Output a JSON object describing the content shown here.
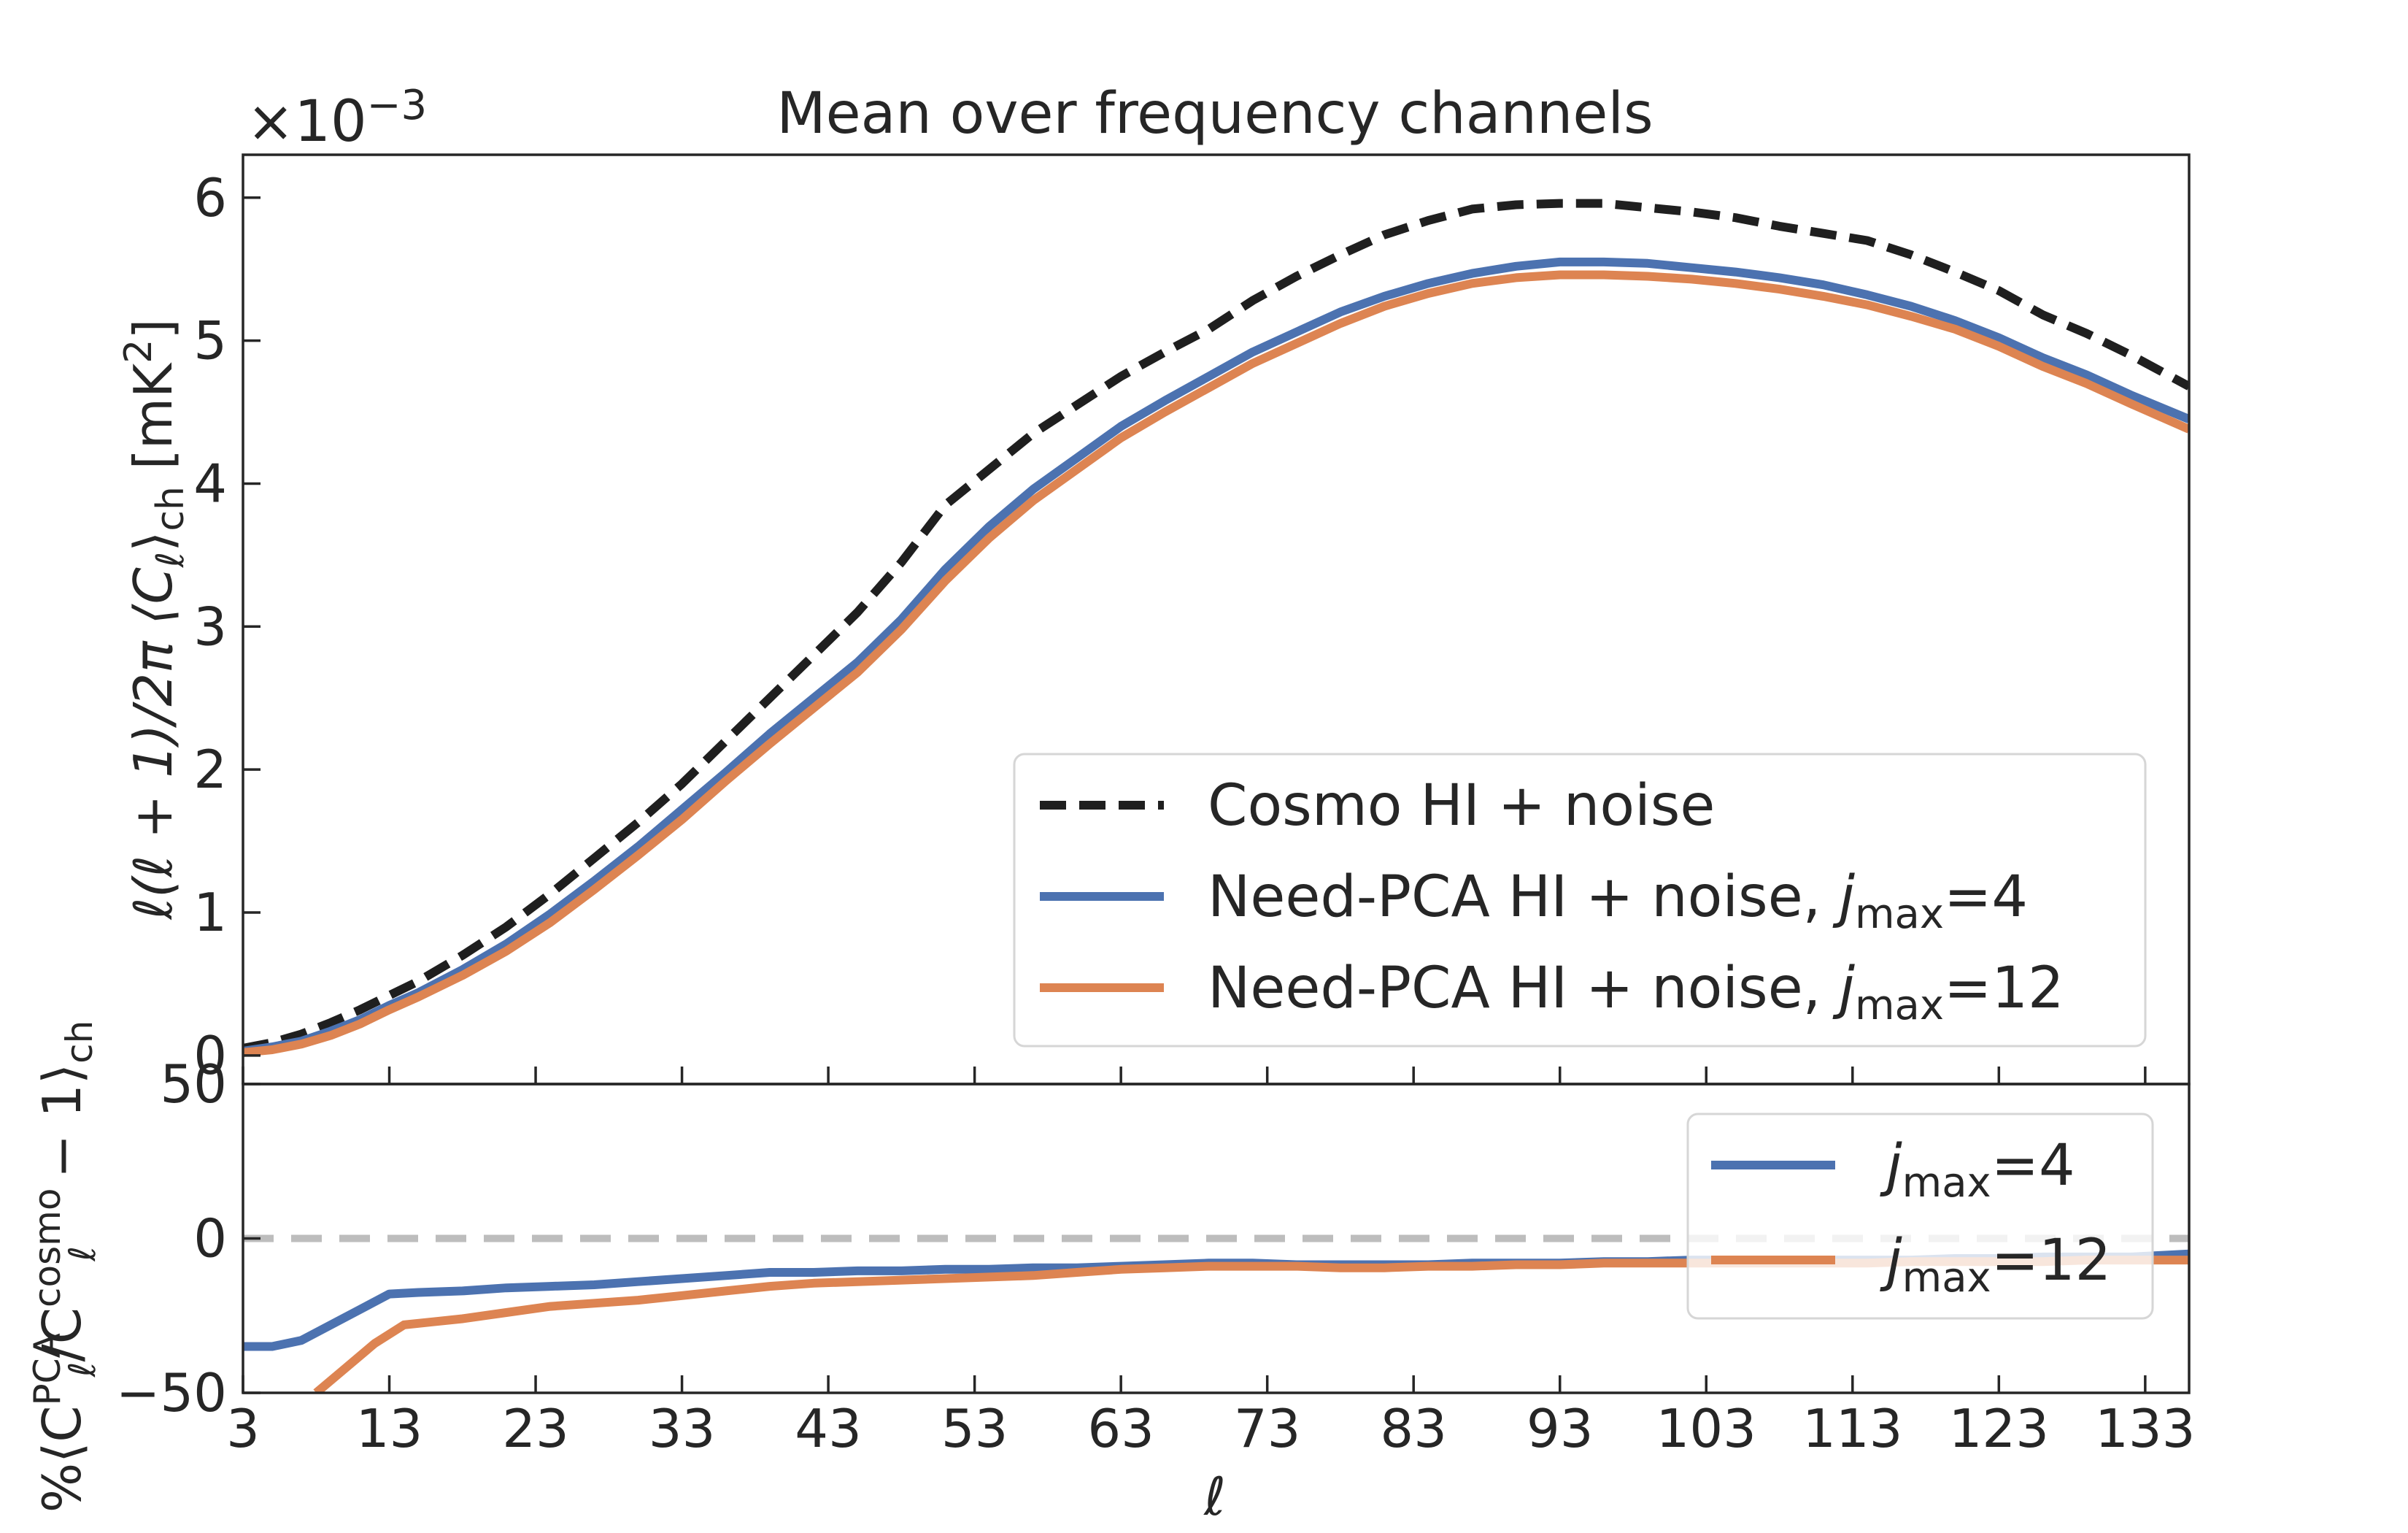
{
  "chart_data": [
    {
      "type": "line",
      "title": "Mean over frequency channels",
      "ylabel": "ℓ(ℓ + 1)/2π ⟨C",
      "ylabel_sub": "ℓ",
      "ylabel_mid": "⟩",
      "ylabel_sub2": "ch",
      "ylabel_unit": " [mK",
      "ylabel_sup": "2",
      "ylabel_end": "]",
      "y_multiplier_base": "×10",
      "y_multiplier_exp": "−3",
      "xlim": [
        3,
        136
      ],
      "ylim": [
        -0.2,
        6.3
      ],
      "y_scale": 0.001,
      "yticks": [
        0,
        1,
        2,
        3,
        4,
        5,
        6
      ],
      "ytick_labels": [
        "0",
        "1",
        "2",
        "3",
        "4",
        "5",
        "6"
      ],
      "legend_position": "lower-right",
      "grid": false,
      "series": [
        {
          "name": "Cosmo HI + noise",
          "color": "#1f1f1f",
          "dash": "dashed",
          "x": [
            3,
            5,
            7,
            9,
            11,
            13,
            15,
            18,
            21,
            24,
            27,
            30,
            33,
            36,
            39,
            42,
            45,
            48,
            51,
            54,
            57,
            60,
            63,
            66,
            69,
            72,
            75,
            78,
            81,
            84,
            87,
            90,
            93,
            96,
            99,
            102,
            105,
            108,
            111,
            114,
            117,
            120,
            123,
            126,
            129,
            132,
            136
          ],
          "y": [
            0.05,
            0.09,
            0.15,
            0.23,
            0.32,
            0.42,
            0.52,
            0.7,
            0.9,
            1.13,
            1.38,
            1.63,
            1.9,
            2.2,
            2.5,
            2.8,
            3.1,
            3.45,
            3.85,
            4.1,
            4.35,
            4.55,
            4.75,
            4.92,
            5.08,
            5.28,
            5.45,
            5.6,
            5.74,
            5.84,
            5.92,
            5.95,
            5.96,
            5.96,
            5.93,
            5.9,
            5.86,
            5.8,
            5.75,
            5.7,
            5.6,
            5.48,
            5.35,
            5.18,
            5.05,
            4.9,
            4.68
          ]
        },
        {
          "name": "Need-PCA HI + noise, ",
          "name_italic": "j",
          "name_sub": "max",
          "name_suffix": "=4",
          "color": "#4c72b0",
          "dash": "solid",
          "x": [
            3,
            5,
            7,
            9,
            11,
            13,
            15,
            18,
            21,
            24,
            27,
            30,
            33,
            36,
            39,
            42,
            45,
            48,
            51,
            54,
            57,
            60,
            63,
            66,
            69,
            72,
            75,
            78,
            81,
            84,
            87,
            90,
            93,
            96,
            99,
            102,
            105,
            108,
            111,
            114,
            117,
            120,
            123,
            126,
            129,
            132,
            136
          ],
          "y": [
            0.03,
            0.06,
            0.1,
            0.17,
            0.25,
            0.35,
            0.44,
            0.6,
            0.78,
            0.99,
            1.22,
            1.46,
            1.72,
            1.98,
            2.25,
            2.5,
            2.75,
            3.05,
            3.4,
            3.7,
            3.96,
            4.18,
            4.4,
            4.58,
            4.75,
            4.92,
            5.06,
            5.2,
            5.31,
            5.4,
            5.47,
            5.52,
            5.55,
            5.55,
            5.54,
            5.51,
            5.48,
            5.44,
            5.39,
            5.32,
            5.24,
            5.14,
            5.02,
            4.88,
            4.76,
            4.62,
            4.45
          ]
        },
        {
          "name": "Need-PCA HI + noise, ",
          "name_italic": "j",
          "name_sub": "max",
          "name_suffix": "=12",
          "color": "#dd8452",
          "dash": "solid",
          "x": [
            3,
            5,
            7,
            9,
            11,
            13,
            15,
            18,
            21,
            24,
            27,
            30,
            33,
            36,
            39,
            42,
            45,
            48,
            51,
            54,
            57,
            60,
            63,
            66,
            69,
            72,
            75,
            78,
            81,
            84,
            87,
            90,
            93,
            96,
            99,
            102,
            105,
            108,
            111,
            114,
            117,
            120,
            123,
            126,
            129,
            132,
            136
          ],
          "y": [
            0.02,
            0.04,
            0.08,
            0.14,
            0.22,
            0.32,
            0.41,
            0.56,
            0.73,
            0.93,
            1.16,
            1.4,
            1.65,
            1.92,
            2.18,
            2.43,
            2.68,
            2.98,
            3.32,
            3.62,
            3.88,
            4.1,
            4.32,
            4.5,
            4.67,
            4.84,
            4.98,
            5.12,
            5.24,
            5.33,
            5.4,
            5.44,
            5.46,
            5.46,
            5.45,
            5.43,
            5.4,
            5.36,
            5.31,
            5.25,
            5.17,
            5.08,
            4.96,
            4.82,
            4.7,
            4.56,
            4.38
          ]
        }
      ]
    },
    {
      "type": "line",
      "xlabel": "ℓ",
      "ylabel_prefix": "%⟨C",
      "ylabel_sup1": "PCA",
      "ylabel_sub1": "ℓ",
      "ylabel_mid": "/C",
      "ylabel_sup2": "cosmo",
      "ylabel_sub2": "ℓ",
      "ylabel_suffix": " − 1⟩",
      "ylabel_sub3": "ch",
      "xlim": [
        3,
        136
      ],
      "ylim": [
        -50,
        50
      ],
      "xticks": [
        3,
        13,
        23,
        33,
        43,
        53,
        63,
        73,
        83,
        93,
        103,
        113,
        123,
        133
      ],
      "xtick_labels": [
        "3",
        "13",
        "23",
        "33",
        "43",
        "53",
        "63",
        "73",
        "83",
        "93",
        "103",
        "113",
        "123",
        "133"
      ],
      "yticks": [
        -50,
        0,
        50
      ],
      "ytick_labels": [
        "−50",
        "0",
        "50"
      ],
      "reference_line": 0,
      "legend_position": "upper-right",
      "grid": false,
      "series": [
        {
          "name_italic": "j",
          "name_sub": "max",
          "name_suffix": "=4",
          "color": "#4c72b0",
          "x": [
            3,
            5,
            7,
            9,
            11,
            13,
            15,
            18,
            21,
            24,
            27,
            30,
            33,
            36,
            39,
            42,
            45,
            48,
            51,
            54,
            57,
            60,
            63,
            66,
            69,
            72,
            75,
            78,
            81,
            84,
            87,
            90,
            93,
            96,
            99,
            102,
            105,
            108,
            111,
            114,
            117,
            120,
            123,
            126,
            129,
            132,
            136
          ],
          "y": [
            -35,
            -35,
            -33,
            -28,
            -23,
            -18,
            -17.5,
            -17,
            -16,
            -15.5,
            -15,
            -14,
            -13,
            -12,
            -11,
            -11,
            -10.5,
            -10.5,
            -10,
            -10,
            -9.5,
            -9.5,
            -9,
            -8.5,
            -8,
            -8,
            -8.5,
            -8.5,
            -8.5,
            -8.5,
            -8,
            -8,
            -8,
            -7.5,
            -7.5,
            -7,
            -7,
            -7,
            -7,
            -7,
            -7,
            -6.5,
            -6.5,
            -6,
            -6,
            -6,
            -5
          ]
        },
        {
          "name_italic": "j",
          "name_sub": "max",
          "name_suffix": "=12",
          "color": "#dd8452",
          "x": [
            8,
            10,
            12,
            14,
            16,
            18,
            21,
            24,
            27,
            30,
            33,
            36,
            39,
            42,
            45,
            48,
            51,
            54,
            57,
            60,
            63,
            66,
            69,
            72,
            75,
            78,
            81,
            84,
            87,
            90,
            93,
            96,
            99,
            102,
            105,
            108,
            111,
            114,
            117,
            120,
            123,
            126,
            129,
            132,
            136
          ],
          "y": [
            -50,
            -42,
            -34,
            -28,
            -27,
            -26,
            -24,
            -22,
            -21,
            -20,
            -18.5,
            -17,
            -15.5,
            -14.5,
            -14,
            -13.5,
            -13,
            -12.5,
            -12,
            -11,
            -10,
            -9.5,
            -9,
            -9,
            -9,
            -9.5,
            -9.5,
            -9,
            -9,
            -8.5,
            -8.5,
            -8,
            -8,
            -8,
            -8,
            -8,
            -8,
            -8,
            -7.5,
            -7.5,
            -7.5,
            -7.5,
            -7,
            -7,
            -7
          ]
        }
      ]
    }
  ]
}
